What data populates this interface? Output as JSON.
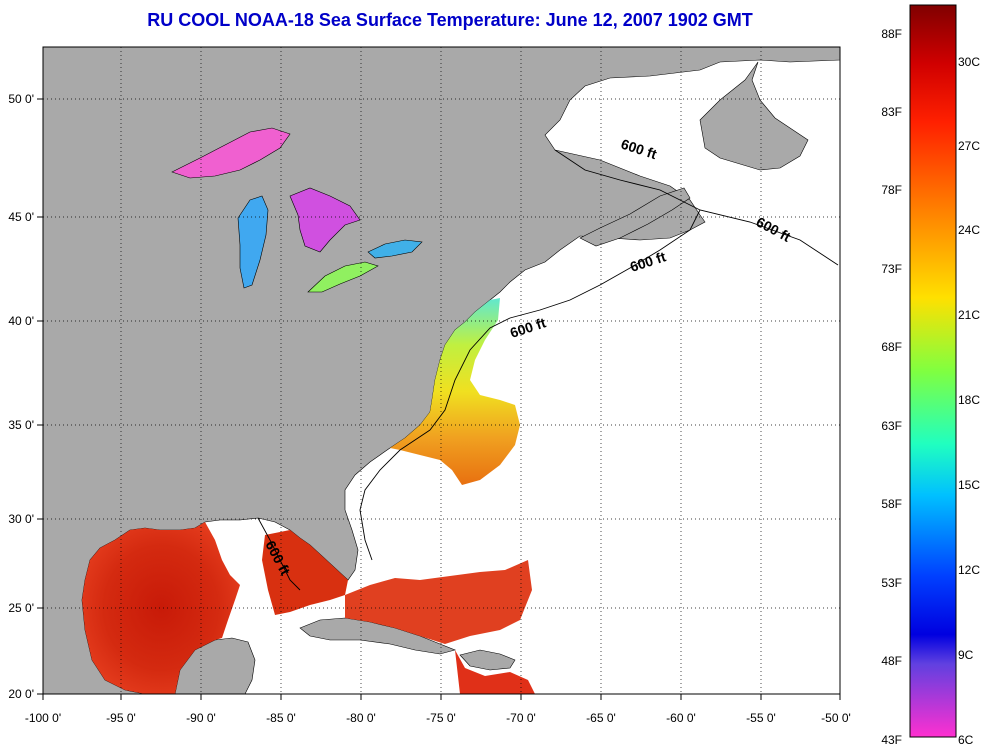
{
  "title": "RU COOL  NOAA-18  Sea Surface Temperature:  June 12, 2007 1902 GMT",
  "lon_ticks": [
    "-100 0'",
    "-95 0'",
    "-90 0'",
    "-85 0'",
    "-80 0'",
    "-75 0'",
    "-70 0'",
    "-65 0'",
    "-60 0'",
    "-55 0'",
    "-50 0'"
  ],
  "lat_ticks": [
    "50 0'",
    "45 0'",
    "40 0'",
    "35 0'",
    "30 0'",
    "25 0'",
    "20 0'"
  ],
  "contour_labels": [
    "600 ft",
    "600 ft",
    "600 ft",
    "600 ft",
    "600 ft"
  ],
  "colorbar": {
    "fahrenheit": [
      "88F",
      "83F",
      "78F",
      "73F",
      "68F",
      "63F",
      "58F",
      "53F",
      "48F",
      "43F"
    ],
    "celsius": [
      "30C",
      "27C",
      "24C",
      "21C",
      "18C",
      "15C",
      "12C",
      "9C",
      "6C"
    ]
  },
  "colors": {
    "title": "#0000c8",
    "land": "#a9a9a9",
    "ocean": "#ffffff"
  }
}
